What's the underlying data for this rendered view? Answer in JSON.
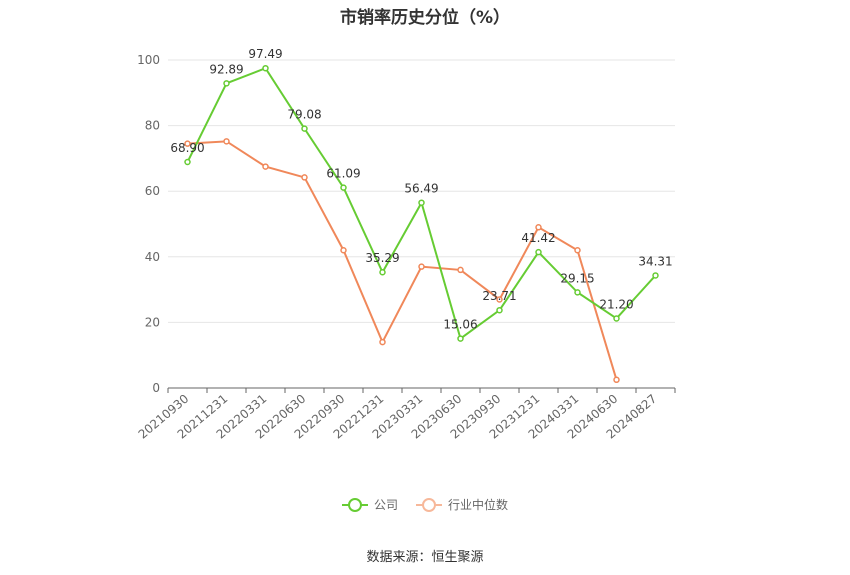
{
  "chart_data": {
    "type": "line",
    "title": "市销率历史分位（%）",
    "categories": [
      "20210930",
      "20211231",
      "20220331",
      "20220630",
      "20220930",
      "20221231",
      "20230331",
      "20230630",
      "20230930",
      "20231231",
      "20240331",
      "20240630",
      "20240827"
    ],
    "series": [
      {
        "name": "公司",
        "color": "#66cc33",
        "values": [
          68.9,
          92.89,
          97.49,
          79.08,
          61.09,
          35.29,
          56.49,
          15.06,
          23.71,
          41.42,
          29.15,
          21.2,
          34.31
        ],
        "labels": [
          "68.90",
          "92.89",
          "97.49",
          "79.08",
          "61.09",
          "35.29",
          "56.49",
          "15.06",
          "23.71",
          "41.42",
          "29.15",
          "21.20",
          "34.31"
        ]
      },
      {
        "name": "行业中位数",
        "color": "#f0885a",
        "values": [
          74.5,
          75.2,
          67.5,
          64.2,
          42.0,
          14.0,
          37.0,
          36.0,
          27.0,
          49.0,
          42.0,
          2.5,
          null
        ]
      }
    ],
    "yticks": [
      0,
      20,
      40,
      60,
      80,
      100
    ],
    "ylim": [
      0,
      100
    ],
    "grid": true,
    "legend_position": "bottom"
  },
  "source": "数据来源：恒生聚源"
}
